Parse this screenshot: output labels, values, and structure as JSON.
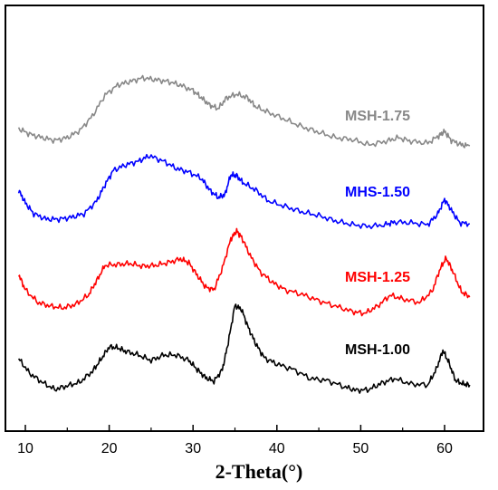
{
  "chart_data": {
    "type": "line",
    "title": "",
    "xlabel": "2-Theta(°)",
    "ylabel": "",
    "xlim": [
      9,
      64
    ],
    "xticks": [
      10,
      20,
      30,
      40,
      50,
      60
    ],
    "grid": false,
    "legend": "inline labels to the right of each curve",
    "series": [
      {
        "name": "MSH-1.00",
        "color": "#000000",
        "points": [
          [
            9.2,
            396
          ],
          [
            10.5,
            412
          ],
          [
            12,
            422
          ],
          [
            13.5,
            430
          ],
          [
            15,
            426
          ],
          [
            16.5,
            422
          ],
          [
            18,
            410
          ],
          [
            19,
            397
          ],
          [
            20,
            383
          ],
          [
            21,
            384
          ],
          [
            22,
            388
          ],
          [
            23.5,
            392
          ],
          [
            25,
            398
          ],
          [
            26.5,
            392
          ],
          [
            28,
            392
          ],
          [
            29.5,
            398
          ],
          [
            30.5,
            408
          ],
          [
            31.5,
            417
          ],
          [
            32.5,
            421
          ],
          [
            33.5,
            408
          ],
          [
            34.2,
            378
          ],
          [
            35,
            337
          ],
          [
            35.8,
            342
          ],
          [
            36.6,
            362
          ],
          [
            37.5,
            380
          ],
          [
            38.5,
            395
          ],
          [
            40,
            402
          ],
          [
            42,
            408
          ],
          [
            44,
            418
          ],
          [
            46,
            420
          ],
          [
            48,
            427
          ],
          [
            49.5,
            431
          ],
          [
            51,
            430
          ],
          [
            52.5,
            423
          ],
          [
            54,
            418
          ],
          [
            56,
            424
          ],
          [
            58,
            425
          ],
          [
            59,
            408
          ],
          [
            59.8,
            387
          ],
          [
            60.5,
            400
          ],
          [
            61.3,
            420
          ],
          [
            62.2,
            424
          ],
          [
            63,
            425
          ]
        ]
      },
      {
        "name": "MHS-1.50",
        "color": "#0000ff",
        "points": [
          [
            9.2,
            210
          ],
          [
            10,
            224
          ],
          [
            11,
            236
          ],
          [
            12.5,
            242
          ],
          [
            14,
            242
          ],
          [
            15.5,
            240
          ],
          [
            17,
            236
          ],
          [
            18.5,
            222
          ],
          [
            19.5,
            204
          ],
          [
            20.5,
            188
          ],
          [
            22,
            182
          ],
          [
            23.5,
            178
          ],
          [
            24.8,
            172
          ],
          [
            26.5,
            178
          ],
          [
            28,
            186
          ],
          [
            29.5,
            190
          ],
          [
            31,
            197
          ],
          [
            32,
            210
          ],
          [
            33,
            218
          ],
          [
            33.8,
            215
          ],
          [
            34.5,
            193
          ],
          [
            35.2,
            194
          ],
          [
            36,
            202
          ],
          [
            37.5,
            210
          ],
          [
            39,
            222
          ],
          [
            41,
            228
          ],
          [
            43,
            234
          ],
          [
            45,
            238
          ],
          [
            47,
            244
          ],
          [
            49,
            248
          ],
          [
            51,
            250
          ],
          [
            53,
            248
          ],
          [
            54,
            245
          ],
          [
            56,
            246
          ],
          [
            58,
            248
          ],
          [
            59.2,
            236
          ],
          [
            60,
            220
          ],
          [
            60.8,
            232
          ],
          [
            61.8,
            246
          ],
          [
            63,
            247
          ]
        ]
      },
      {
        "name": "MSH-1.25",
        "color": "#ff0000",
        "points": [
          [
            9.2,
            303
          ],
          [
            10,
            320
          ],
          [
            11.5,
            334
          ],
          [
            13,
            338
          ],
          [
            14.5,
            340
          ],
          [
            16,
            336
          ],
          [
            17.5,
            326
          ],
          [
            18.5,
            310
          ],
          [
            19.5,
            293
          ],
          [
            21,
            292
          ],
          [
            22.5,
            291
          ],
          [
            24,
            294
          ],
          [
            25.5,
            293
          ],
          [
            27,
            290
          ],
          [
            28.5,
            286
          ],
          [
            29.5,
            290
          ],
          [
            30.5,
            304
          ],
          [
            31.5,
            317
          ],
          [
            32.5,
            320
          ],
          [
            33.5,
            296
          ],
          [
            34.5,
            264
          ],
          [
            35.2,
            255
          ],
          [
            35.8,
            262
          ],
          [
            36.8,
            282
          ],
          [
            38,
            300
          ],
          [
            39.5,
            312
          ],
          [
            41,
            320
          ],
          [
            43,
            325
          ],
          [
            45,
            332
          ],
          [
            47,
            338
          ],
          [
            49,
            344
          ],
          [
            50.5,
            346
          ],
          [
            52,
            338
          ],
          [
            53.5,
            326
          ],
          [
            55,
            330
          ],
          [
            57,
            334
          ],
          [
            58.5,
            322
          ],
          [
            59.5,
            296
          ],
          [
            60.2,
            285
          ],
          [
            61,
            300
          ],
          [
            62,
            322
          ],
          [
            63,
            328
          ]
        ]
      },
      {
        "name": "MSH-1.75",
        "color": "#888888",
        "points": [
          [
            9.2,
            142
          ],
          [
            10.5,
            148
          ],
          [
            12,
            152
          ],
          [
            13.5,
            155
          ],
          [
            15,
            152
          ],
          [
            16.5,
            144
          ],
          [
            18,
            128
          ],
          [
            19.5,
            105
          ],
          [
            21,
            94
          ],
          [
            22.5,
            90
          ],
          [
            24,
            86
          ],
          [
            25.5,
            88
          ],
          [
            27,
            90
          ],
          [
            28.5,
            94
          ],
          [
            30,
            100
          ],
          [
            31,
            108
          ],
          [
            32,
            116
          ],
          [
            33,
            120
          ],
          [
            34,
            108
          ],
          [
            35.2,
            104
          ],
          [
            36.5,
            108
          ],
          [
            37.5,
            118
          ],
          [
            39,
            124
          ],
          [
            41,
            132
          ],
          [
            43,
            140
          ],
          [
            45,
            146
          ],
          [
            47,
            152
          ],
          [
            49,
            154
          ],
          [
            51,
            160
          ],
          [
            53,
            156
          ],
          [
            54.5,
            152
          ],
          [
            56,
            156
          ],
          [
            58,
            158
          ],
          [
            59.3,
            150
          ],
          [
            60,
            145
          ],
          [
            60.8,
            155
          ],
          [
            62,
            160
          ],
          [
            63,
            161
          ]
        ]
      }
    ],
    "label_texts": [
      "MSH-1.75",
      "MHS-1.50",
      "MSH-1.25",
      "MSH-1.00"
    ]
  }
}
